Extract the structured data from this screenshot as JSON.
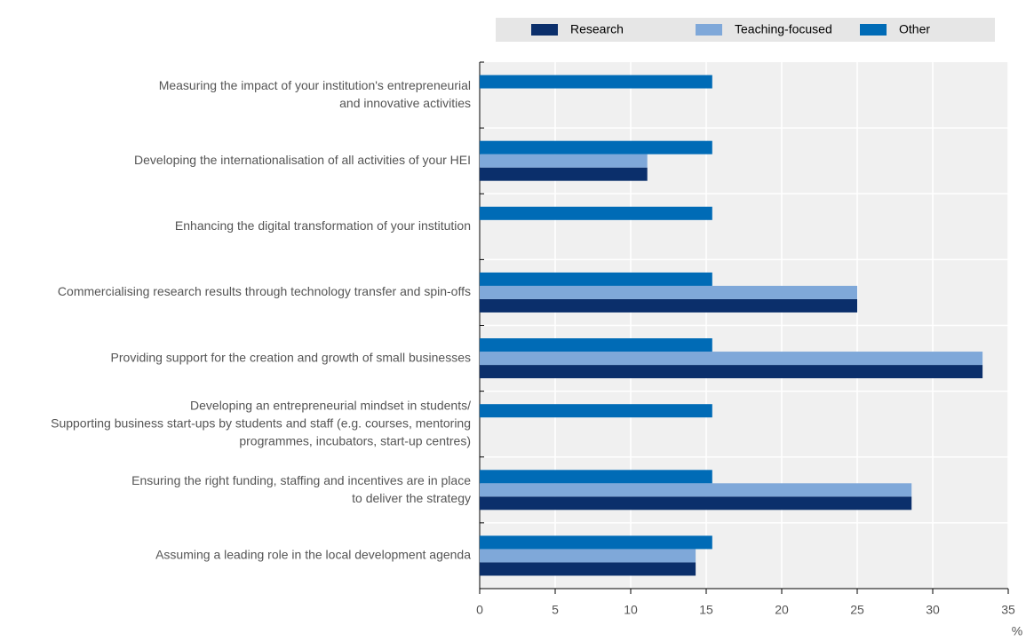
{
  "chart_data": {
    "type": "bar",
    "orientation": "horizontal",
    "categories": [
      "Measuring the impact of your institution's entrepreneurial\nand innovative activities",
      "Developing the internationalisation of all activities of your HEI",
      "Enhancing the digital transformation of your institution",
      "Commercialising research results through technology transfer and spin-offs",
      "Providing support for the creation and growth of small businesses",
      "Developing an entrepreneurial mindset in students/\nSupporting business start-ups by students and staff (e.g. courses, mentoring\nprogrammes, incubators, start-up centres)",
      "Ensuring the right funding, staffing and incentives are in place\nto deliver the strategy",
      "Assuming a leading role in the local development agenda"
    ],
    "series": [
      {
        "name": "Research",
        "color": "#0b2f6b",
        "values": [
          0,
          11.1,
          0,
          25,
          33.3,
          0,
          28.6,
          14.3
        ]
      },
      {
        "name": "Teaching-focused",
        "color": "#7fa8d9",
        "values": [
          0,
          11.1,
          0,
          25,
          33.3,
          0,
          28.6,
          14.3
        ]
      },
      {
        "name": "Other",
        "color": "#006bb6",
        "values": [
          15.4,
          15.4,
          15.4,
          15.4,
          15.4,
          15.4,
          15.4,
          15.4
        ]
      }
    ],
    "xlabel": "%",
    "xlim": [
      0,
      35
    ],
    "xticks": [
      0,
      5,
      10,
      15,
      20,
      25,
      30,
      35
    ],
    "grid": true,
    "legend": "top"
  }
}
